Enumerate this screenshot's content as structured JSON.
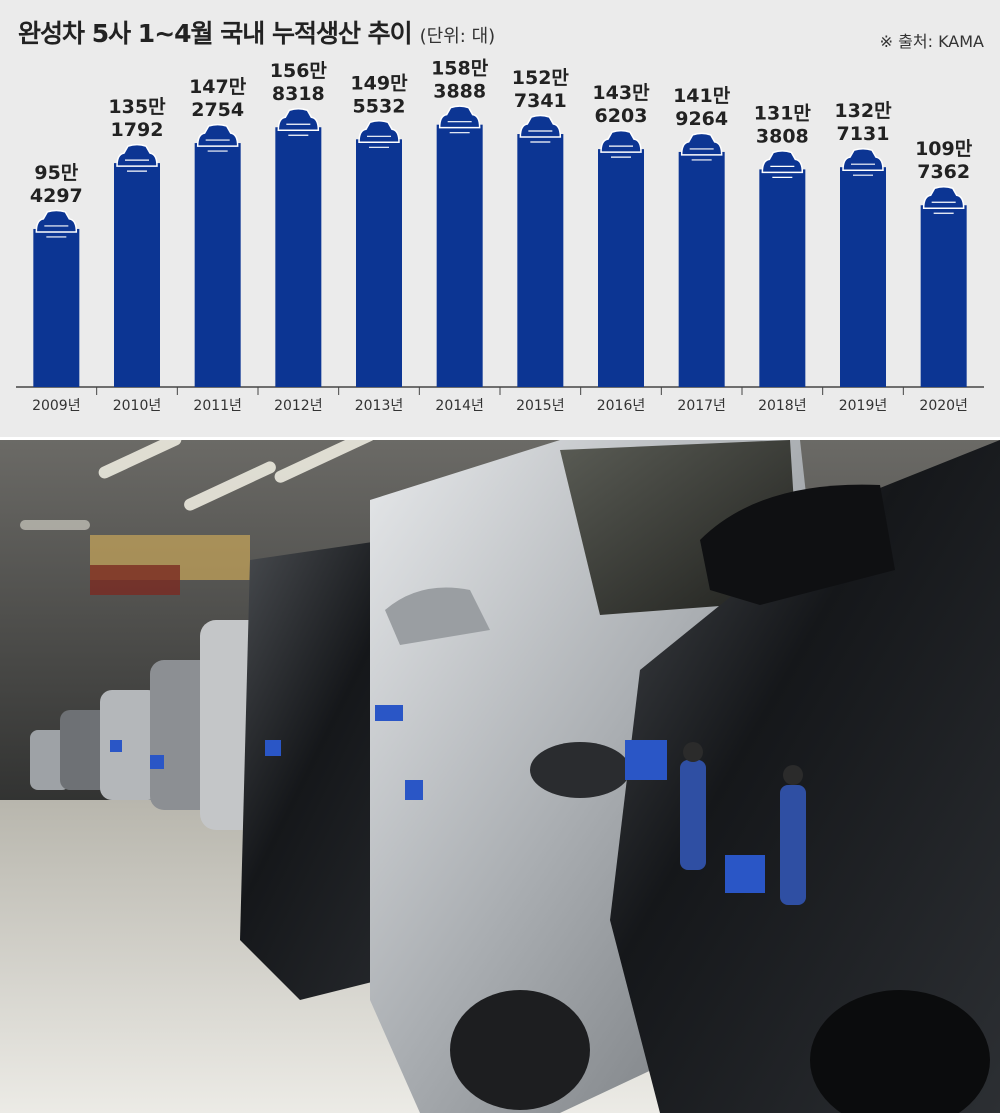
{
  "title": "완성차 5사 1~4월 국내 누적생산 추이",
  "unit": "(단위: 대)",
  "source": "※ 출처: KAMA",
  "chart_data": {
    "type": "bar",
    "categories": [
      "2009년",
      "2010년",
      "2011년",
      "2012년",
      "2013년",
      "2014년",
      "2015년",
      "2016년",
      "2017년",
      "2018년",
      "2019년",
      "2020년"
    ],
    "values": [
      954297,
      1351792,
      1472754,
      1568318,
      1495532,
      1583888,
      1527341,
      1436203,
      1419264,
      1313808,
      1327131,
      1097362
    ],
    "value_labels": [
      [
        "95만",
        "4297"
      ],
      [
        "135만",
        "1792"
      ],
      [
        "147만",
        "2754"
      ],
      [
        "156만",
        "8318"
      ],
      [
        "149만",
        "5532"
      ],
      [
        "158만",
        "3888"
      ],
      [
        "152만",
        "7341"
      ],
      [
        "143만",
        "6203"
      ],
      [
        "141만",
        "9264"
      ],
      [
        "131만",
        "3808"
      ],
      [
        "132만",
        "7131"
      ],
      [
        "109만",
        "7362"
      ]
    ],
    "ylim": [
      0,
      1600000
    ],
    "bar_color": "#0c3593",
    "grid": false
  },
  "photo": {
    "colors": {
      "ceiling": "#4a4a48",
      "floor": "#d9d6cc",
      "car_silver": "#b9bcbf",
      "car_dark": "#1b1d20",
      "tag_blue": "#2a56c6"
    }
  }
}
